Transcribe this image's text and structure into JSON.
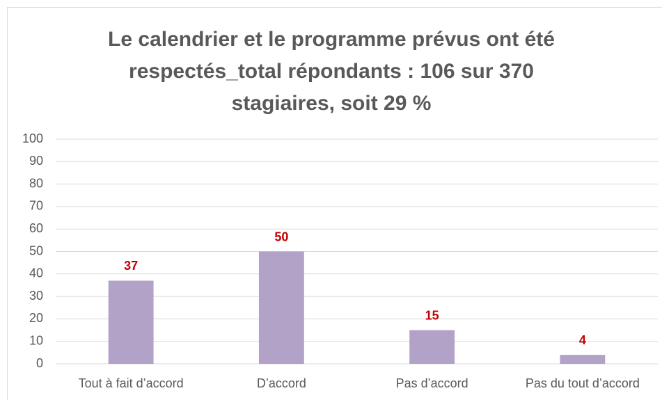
{
  "chart_data": {
    "type": "bar",
    "title": [
      "Le calendrier et le programme prévus ont été",
      "respectés_total répondants : 106 sur 370",
      "stagiaires, soit 29 %"
    ],
    "categories": [
      "Tout à fait d’accord",
      "D’accord",
      "Pas d’accord",
      "Pas du tout d’accord"
    ],
    "values": [
      37,
      50,
      15,
      4
    ],
    "color": "#b3a2c7",
    "label_color": "#c00000",
    "ylim": [
      0,
      100
    ],
    "yticks": [
      0,
      10,
      20,
      30,
      40,
      50,
      60,
      70,
      80,
      90,
      100
    ],
    "grid": true
  }
}
